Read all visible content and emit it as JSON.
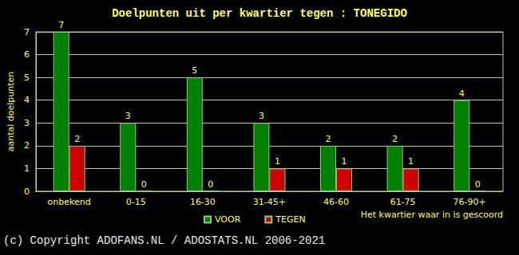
{
  "chart_data": {
    "type": "bar",
    "title": "Doelpunten uit per kwartier tegen : TONEGIDO",
    "xlabel": "Het kwartier waar in is gescoord",
    "ylabel": "aantal doelpunten",
    "categories": [
      "onbekend",
      "0-15",
      "16-30",
      "31-45+",
      "46-60",
      "61-75",
      "76-90+"
    ],
    "series": [
      {
        "name": "VOOR",
        "color": "#008000",
        "values": [
          7,
          3,
          5,
          3,
          2,
          2,
          4
        ]
      },
      {
        "name": "TEGEN",
        "color": "#cc0000",
        "values": [
          2,
          0,
          0,
          1,
          1,
          1,
          0
        ]
      }
    ],
    "ylim": [
      0,
      7
    ],
    "yticks": [
      0,
      1,
      2,
      3,
      4,
      5,
      6,
      7
    ],
    "grid": true,
    "legend": "bottom",
    "data_labels": true,
    "annotations": [
      "(c) Copyright ADOFANS.NL / ADOSTATS.NL 2006-2021"
    ]
  }
}
